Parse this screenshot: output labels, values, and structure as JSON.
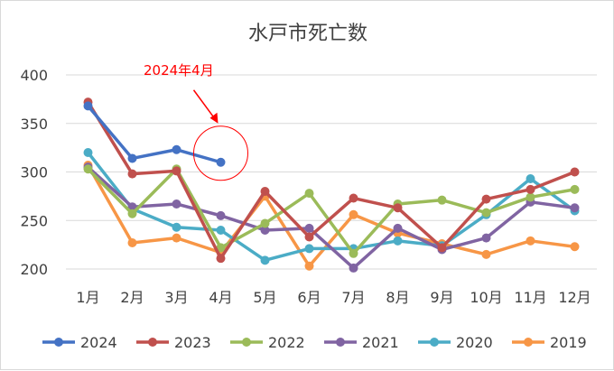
{
  "chart_data": {
    "type": "line",
    "title": "水戸市死亡数",
    "categories": [
      "1月",
      "2月",
      "3月",
      "4月",
      "5月",
      "6月",
      "7月",
      "8月",
      "9月",
      "10月",
      "11月",
      "12月"
    ],
    "ylim": [
      200,
      400
    ],
    "yticks": [
      200,
      250,
      300,
      350,
      400
    ],
    "grid": true,
    "legend_position": "bottom",
    "annotation": {
      "text": "2024年4月",
      "color": "#ff0000",
      "target_series": "2024",
      "target_category": "4月"
    },
    "series": [
      {
        "name": "2024",
        "color": "#4472c4",
        "values": [
          368,
          314,
          323,
          310,
          null,
          null,
          null,
          null,
          null,
          null,
          null,
          null
        ]
      },
      {
        "name": "2023",
        "color": "#c0504d",
        "values": [
          372,
          298,
          301,
          211,
          280,
          233,
          273,
          263,
          222,
          272,
          282,
          300
        ]
      },
      {
        "name": "2022",
        "color": "#9bbb59",
        "values": [
          303,
          257,
          303,
          222,
          247,
          278,
          216,
          267,
          271,
          258,
          274,
          282
        ]
      },
      {
        "name": "2021",
        "color": "#8064a2",
        "values": [
          305,
          264,
          267,
          255,
          240,
          242,
          201,
          242,
          220,
          232,
          269,
          263
        ]
      },
      {
        "name": "2020",
        "color": "#4bacc6",
        "values": [
          320,
          262,
          243,
          240,
          209,
          221,
          221,
          229,
          224,
          256,
          293,
          260
        ]
      },
      {
        "name": "2019",
        "color": "#f79646",
        "values": [
          307,
          227,
          232,
          217,
          275,
          203,
          256,
          237,
          226,
          215,
          229,
          223
        ]
      }
    ]
  }
}
